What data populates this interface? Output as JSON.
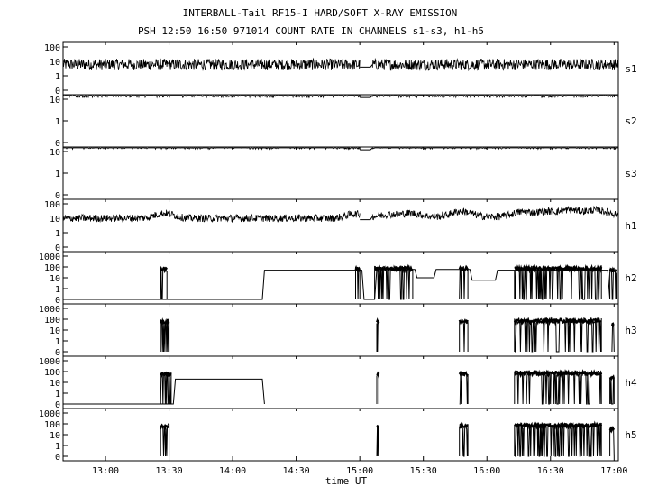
{
  "chart_data": {
    "type": "line",
    "title": "INTERBALL-Tail RF15-I HARD/SOFT X-RAY EMISSION",
    "subtitle": "PSH 12:50 16:50 971014  COUNT RATE IN CHANNELS s1-s3, h1-h5",
    "xlabel": "time UT",
    "x_ticks": [
      "13:00",
      "13:30",
      "14:00",
      "14:30",
      "15:00",
      "15:30",
      "16:00",
      "16:30",
      "17:00"
    ],
    "x_range": [
      "12:40",
      "17:02"
    ],
    "y_scale": "log",
    "grid": false,
    "legend": "none",
    "line_color": "#000000",
    "panels": [
      {
        "name": "s1",
        "y_ticks": [
          "100",
          "10",
          "1",
          "0"
        ],
        "segments": [
          {
            "type": "noise",
            "x_start": "12:40",
            "x_end": "15:00",
            "level": 6,
            "spread": 2.5
          },
          {
            "type": "step",
            "points": [
              [
                "15:00",
                4
              ],
              [
                "15:05",
                4
              ],
              [
                "15:06",
                6
              ]
            ]
          },
          {
            "type": "noise",
            "x_start": "15:06",
            "x_end": "17:02",
            "level": 6,
            "spread": 2.5
          }
        ]
      },
      {
        "name": "s2",
        "y_ticks": [
          "10",
          "1",
          "0"
        ],
        "segments": [
          {
            "type": "noise",
            "x_start": "12:40",
            "x_end": "15:00",
            "level": 18,
            "spread": 1.5
          },
          {
            "type": "step",
            "points": [
              [
                "15:00",
                12
              ],
              [
                "15:05",
                12
              ],
              [
                "15:06",
                18
              ]
            ]
          },
          {
            "type": "noise",
            "x_start": "15:06",
            "x_end": "17:02",
            "level": 18,
            "spread": 1.5
          }
        ]
      },
      {
        "name": "s3",
        "y_ticks": [
          "10",
          "1",
          "0"
        ],
        "segments": [
          {
            "type": "noise",
            "x_start": "12:40",
            "x_end": "15:00",
            "level": 18,
            "spread": 1.4
          },
          {
            "type": "step",
            "points": [
              [
                "15:00",
                12
              ],
              [
                "15:05",
                12
              ],
              [
                "15:06",
                18
              ]
            ]
          },
          {
            "type": "noise",
            "x_start": "15:06",
            "x_end": "17:02",
            "level": 18,
            "spread": 1.4
          }
        ]
      },
      {
        "name": "h1",
        "y_ticks": [
          "100",
          "10",
          "1",
          "0"
        ],
        "segments": [
          {
            "type": "noise",
            "x_start": "12:40",
            "x_end": "15:00",
            "level": 10,
            "spread": 1.8,
            "bumps": [
              [
                "13:28",
                22
              ],
              [
                "14:58",
                20
              ]
            ]
          },
          {
            "type": "step",
            "points": [
              [
                "15:00",
                8
              ],
              [
                "15:05",
                8
              ],
              [
                "15:06",
                14
              ]
            ]
          },
          {
            "type": "noise",
            "x_start": "15:06",
            "x_end": "17:02",
            "level": 13,
            "spread": 1.8,
            "bumps": [
              [
                "15:14",
                18
              ],
              [
                "15:24",
                22
              ],
              [
                "15:48",
                30
              ],
              [
                "16:17",
                28
              ],
              [
                "16:28",
                30
              ],
              [
                "16:39",
                38
              ],
              [
                "16:50",
                34
              ],
              [
                "16:57",
                22
              ]
            ]
          }
        ]
      },
      {
        "name": "h2",
        "y_ticks": [
          "1000",
          "100",
          "10",
          "1",
          "0"
        ],
        "segments": [
          {
            "type": "step",
            "points": [
              [
                "12:40",
                0
              ],
              [
                "14:14",
                0
              ],
              [
                "14:15",
                50
              ],
              [
                "15:01",
                50
              ],
              [
                "15:02",
                0
              ],
              [
                "15:07",
                0
              ],
              [
                "15:08",
                60
              ],
              [
                "15:26",
                60
              ],
              [
                "15:27",
                10
              ],
              [
                "15:35",
                10
              ],
              [
                "15:36",
                60
              ],
              [
                "15:52",
                60
              ],
              [
                "15:53",
                6
              ],
              [
                "16:04",
                6
              ],
              [
                "16:05",
                50
              ],
              [
                "16:57",
                50
              ],
              [
                "16:58",
                0
              ]
            ]
          },
          {
            "type": "burst",
            "x_start": "13:26",
            "x_end": "13:29",
            "peak": 60
          },
          {
            "type": "burst",
            "x_start": "14:58",
            "x_end": "15:00",
            "peak": 60
          },
          {
            "type": "burst",
            "x_start": "15:07",
            "x_end": "15:25",
            "peak": 70
          },
          {
            "type": "burst",
            "x_start": "15:47",
            "x_end": "15:51",
            "peak": 70
          },
          {
            "type": "burst",
            "x_start": "16:13",
            "x_end": "16:54",
            "peak": 70
          },
          {
            "type": "burst",
            "x_start": "16:58",
            "x_end": "17:01",
            "peak": 50
          }
        ]
      },
      {
        "name": "h3",
        "y_ticks": [
          "1000",
          "100",
          "10",
          "1",
          "0"
        ],
        "segments": [
          {
            "type": "burst",
            "x_start": "13:26",
            "x_end": "13:30",
            "peak": 60
          },
          {
            "type": "burst",
            "x_start": "15:08",
            "x_end": "15:09",
            "peak": 60
          },
          {
            "type": "burst",
            "x_start": "15:47",
            "x_end": "15:51",
            "peak": 60
          },
          {
            "type": "burst",
            "x_start": "16:13",
            "x_end": "16:54",
            "peak": 70
          },
          {
            "type": "burst",
            "x_start": "16:59",
            "x_end": "17:00",
            "peak": 30
          }
        ]
      },
      {
        "name": "h4",
        "y_ticks": [
          "1000",
          "100",
          "10",
          "1",
          "0"
        ],
        "segments": [
          {
            "type": "step",
            "points": [
              [
                "12:40",
                0
              ],
              [
                "13:32",
                0
              ],
              [
                "13:33",
                20
              ],
              [
                "14:14",
                20
              ],
              [
                "14:15",
                0
              ]
            ]
          },
          {
            "type": "burst",
            "x_start": "13:26",
            "x_end": "13:31",
            "peak": 60
          },
          {
            "type": "burst",
            "x_start": "15:08",
            "x_end": "15:09",
            "peak": 60
          },
          {
            "type": "burst",
            "x_start": "15:47",
            "x_end": "15:51",
            "peak": 60
          },
          {
            "type": "burst",
            "x_start": "16:13",
            "x_end": "16:54",
            "peak": 70
          },
          {
            "type": "burst",
            "x_start": "16:58",
            "x_end": "17:00",
            "peak": 30
          }
        ]
      },
      {
        "name": "h5",
        "y_ticks": [
          "1000",
          "100",
          "10",
          "1",
          "0"
        ],
        "segments": [
          {
            "type": "burst",
            "x_start": "13:26",
            "x_end": "13:30",
            "peak": 60
          },
          {
            "type": "burst",
            "x_start": "15:08",
            "x_end": "15:09",
            "peak": 60
          },
          {
            "type": "burst",
            "x_start": "15:47",
            "x_end": "15:51",
            "peak": 60
          },
          {
            "type": "burst",
            "x_start": "16:13",
            "x_end": "16:54",
            "peak": 70
          },
          {
            "type": "burst",
            "x_start": "16:58",
            "x_end": "17:00",
            "peak": 30
          }
        ]
      }
    ]
  }
}
